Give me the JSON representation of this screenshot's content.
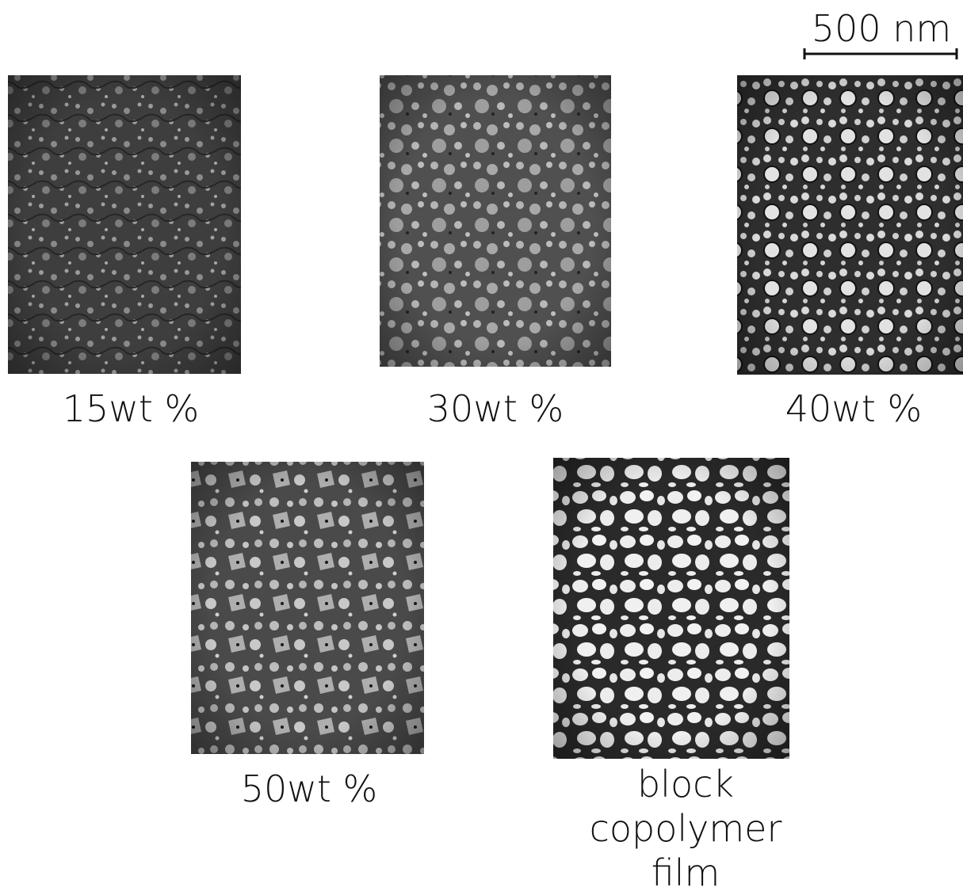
{
  "scale_bar": {
    "label": "500 nm"
  },
  "panels": [
    {
      "label": "15wt %"
    },
    {
      "label": "30wt %"
    },
    {
      "label": "40wt %"
    },
    {
      "label": "50wt %"
    },
    {
      "label": "block copolymer film"
    }
  ]
}
